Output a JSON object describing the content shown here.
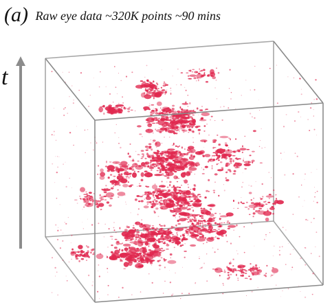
{
  "figure": {
    "panel_label": "(a)",
    "caption": "Raw eye data ~320K points ~90 mins"
  },
  "chart_data": {
    "type": "scatter",
    "title": "Raw eye data ~320K points ~90 mins",
    "axis_labels": {
      "t": "t"
    },
    "series": [
      {
        "color": "#e0284f"
      }
    ]
  },
  "colors": {
    "points": "#e0284f",
    "cube_edges": "#8a8a8a",
    "axis_arrow": "#8c8c8c"
  }
}
